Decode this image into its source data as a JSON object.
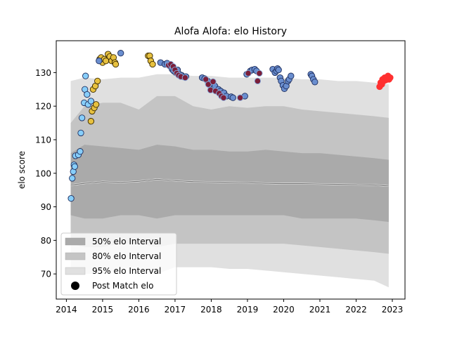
{
  "chart_data": {
    "type": "scatter",
    "title": "Alofa Alofa: elo History",
    "ylabel": "elo score",
    "xlabel": "",
    "xlim": [
      2013.72,
      2023.35
    ],
    "ylim": [
      62.5,
      139.5
    ],
    "x_ticks": [
      2014,
      2015,
      2016,
      2017,
      2018,
      2019,
      2020,
      2021,
      2022,
      2023
    ],
    "y_ticks": [
      70,
      80,
      90,
      100,
      110,
      120,
      130
    ],
    "grid": false,
    "legend": {
      "placement": "lower-left",
      "entries": [
        {
          "label": "50% elo Interval",
          "color": "#aaaaaa"
        },
        {
          "label": "80% elo Interval",
          "color": "#c4c4c4"
        },
        {
          "label": "95% elo Interval",
          "color": "#e0e0e0"
        },
        {
          "label": "Post Match elo",
          "color": "#000000"
        }
      ]
    },
    "bands": {
      "x": [
        2014.12,
        2014.5,
        2015.0,
        2015.5,
        2016.0,
        2016.5,
        2017.0,
        2017.5,
        2018.0,
        2018.5,
        2019.0,
        2019.5,
        2020.0,
        2020.5,
        2021.0,
        2021.5,
        2022.0,
        2022.5,
        2022.9
      ],
      "mean": [
        96.5,
        97,
        97.5,
        97.3,
        97.6,
        98.2,
        97.8,
        97.5,
        97.4,
        97.3,
        97.2,
        97,
        96.9,
        96.9,
        96.8,
        96.7,
        96.6,
        96.5,
        96.2
      ],
      "p50": [
        [
          87.5,
          106
        ],
        [
          86.5,
          108.5
        ],
        [
          86.5,
          108
        ],
        [
          87.5,
          107.5
        ],
        [
          87.5,
          107
        ],
        [
          86.5,
          108.5
        ],
        [
          87.5,
          108
        ],
        [
          87.5,
          107
        ],
        [
          87.5,
          107
        ],
        [
          87.5,
          106.5
        ],
        [
          87.5,
          106.5
        ],
        [
          87.5,
          107
        ],
        [
          87.5,
          106.5
        ],
        [
          86.5,
          106
        ],
        [
          86.5,
          106
        ],
        [
          86.5,
          105.5
        ],
        [
          86.5,
          105
        ],
        [
          86,
          104.5
        ],
        [
          85.5,
          104
        ]
      ],
      "p80": [
        [
          79,
          115
        ],
        [
          78,
          120
        ],
        [
          78,
          121
        ],
        [
          79,
          121
        ],
        [
          79,
          119
        ],
        [
          78,
          123
        ],
        [
          79,
          123
        ],
        [
          79,
          120
        ],
        [
          79,
          119
        ],
        [
          79,
          120
        ],
        [
          79,
          119.5
        ],
        [
          79,
          120
        ],
        [
          79,
          120
        ],
        [
          78.5,
          119
        ],
        [
          78,
          118.5
        ],
        [
          77.5,
          118
        ],
        [
          77,
          117.5
        ],
        [
          76.5,
          117
        ],
        [
          76,
          116.5
        ]
      ],
      "p95": [
        [
          71,
          127.5
        ],
        [
          70,
          128.5
        ],
        [
          70,
          128
        ],
        [
          71.5,
          128.5
        ],
        [
          72,
          128.5
        ],
        [
          70,
          129.5
        ],
        [
          72,
          129.5
        ],
        [
          72,
          129
        ],
        [
          72,
          129
        ],
        [
          71.5,
          128.5
        ],
        [
          71.5,
          128.5
        ],
        [
          71,
          128.5
        ],
        [
          70.5,
          128.5
        ],
        [
          70,
          128
        ],
        [
          69.5,
          128
        ],
        [
          69,
          127.5
        ],
        [
          68.5,
          127.5
        ],
        [
          68,
          127
        ],
        [
          66,
          126.5
        ]
      ]
    },
    "series": [
      {
        "color": "#87cefa",
        "edge": "#1f2f5f",
        "points": [
          [
            2014.13,
            92.5
          ],
          [
            2014.16,
            98.5
          ],
          [
            2014.19,
            100.5
          ],
          [
            2014.21,
            102.5
          ],
          [
            2014.23,
            102
          ],
          [
            2014.25,
            105.2
          ],
          [
            2014.33,
            105.5
          ],
          [
            2014.38,
            106.5
          ],
          [
            2014.4,
            112
          ],
          [
            2014.43,
            116.5
          ],
          [
            2014.49,
            121
          ],
          [
            2014.51,
            125
          ],
          [
            2014.53,
            129
          ],
          [
            2014.57,
            123.5
          ],
          [
            2014.6,
            120.5
          ],
          [
            2014.68,
            121.5
          ]
        ]
      },
      {
        "color": "#e7c13f",
        "edge": "#3a2a00",
        "points": [
          [
            2014.68,
            115.5
          ],
          [
            2014.71,
            118.5
          ],
          [
            2014.74,
            125
          ],
          [
            2014.77,
            119.5
          ],
          [
            2014.8,
            126
          ],
          [
            2014.82,
            120.5
          ],
          [
            2014.86,
            127.5
          ],
          [
            2014.92,
            134
          ],
          [
            2014.96,
            134.5
          ],
          [
            2015.0,
            133
          ],
          [
            2015.05,
            134
          ],
          [
            2015.09,
            133.5
          ],
          [
            2015.15,
            135.5
          ],
          [
            2015.2,
            134.8
          ],
          [
            2015.25,
            133.5
          ],
          [
            2015.3,
            134.5
          ],
          [
            2015.34,
            133
          ],
          [
            2015.36,
            132.5
          ],
          [
            2016.26,
            135
          ],
          [
            2016.3,
            135
          ],
          [
            2016.33,
            133.5
          ],
          [
            2016.38,
            132.5
          ]
        ]
      },
      {
        "color": "#6a8ecf",
        "edge": "#1f2f5f",
        "points": [
          [
            2014.9,
            133.5
          ],
          [
            2015.5,
            135.8
          ],
          [
            2016.6,
            133
          ],
          [
            2016.72,
            132.5
          ],
          [
            2016.78,
            132.8
          ],
          [
            2016.85,
            132
          ],
          [
            2016.92,
            131
          ],
          [
            2016.96,
            130.5
          ],
          [
            2017.02,
            130
          ],
          [
            2017.07,
            130.8
          ],
          [
            2017.12,
            129.5
          ],
          [
            2017.18,
            129.2
          ],
          [
            2017.22,
            128.8
          ],
          [
            2017.3,
            128.8
          ],
          [
            2017.75,
            128.5
          ],
          [
            2017.82,
            128.2
          ],
          [
            2017.9,
            127.5
          ],
          [
            2017.95,
            126.5
          ],
          [
            2018.0,
            125.5
          ],
          [
            2018.03,
            125
          ],
          [
            2018.1,
            126
          ],
          [
            2018.2,
            125
          ],
          [
            2018.26,
            124.5
          ],
          [
            2018.3,
            123.5
          ],
          [
            2018.35,
            124
          ],
          [
            2018.42,
            123
          ],
          [
            2018.55,
            122.8
          ],
          [
            2018.6,
            122.5
          ],
          [
            2018.93,
            123
          ],
          [
            2018.98,
            129.5
          ],
          [
            2019.08,
            130.5
          ],
          [
            2019.13,
            130.8
          ],
          [
            2019.2,
            131
          ],
          [
            2019.25,
            130.5
          ],
          [
            2019.7,
            131
          ],
          [
            2019.76,
            130
          ],
          [
            2019.8,
            130.5
          ],
          [
            2019.83,
            131.2
          ],
          [
            2019.86,
            130.8
          ],
          [
            2019.9,
            128.5
          ],
          [
            2019.93,
            127.5
          ],
          [
            2019.98,
            126.2
          ],
          [
            2020.02,
            125.2
          ],
          [
            2020.07,
            126
          ],
          [
            2020.12,
            127.5
          ],
          [
            2020.15,
            128
          ],
          [
            2020.2,
            129
          ],
          [
            2020.75,
            129.5
          ],
          [
            2020.78,
            129
          ],
          [
            2020.82,
            128
          ],
          [
            2020.86,
            127.2
          ]
        ]
      },
      {
        "color": "#7b1f3a",
        "edge": "#87aedf",
        "points": [
          [
            2016.82,
            132.2
          ],
          [
            2016.88,
            132.5
          ],
          [
            2016.95,
            131.8
          ],
          [
            2017.0,
            130.8
          ],
          [
            2017.05,
            129.8
          ],
          [
            2017.1,
            129.2
          ],
          [
            2017.16,
            128.8
          ],
          [
            2017.28,
            128.5
          ],
          [
            2017.85,
            128
          ],
          [
            2017.92,
            126.5
          ],
          [
            2017.98,
            124.8
          ],
          [
            2018.05,
            127.3
          ],
          [
            2018.12,
            124.5
          ],
          [
            2018.22,
            123.8
          ],
          [
            2018.28,
            123
          ],
          [
            2018.34,
            122.5
          ],
          [
            2018.8,
            122.5
          ],
          [
            2019.02,
            129.8
          ],
          [
            2019.28,
            127.5
          ],
          [
            2019.33,
            129.8
          ]
        ]
      },
      {
        "color": "#ff3030",
        "edge": "#ff3030",
        "points": [
          [
            2022.65,
            125.8
          ],
          [
            2022.68,
            127
          ],
          [
            2022.71,
            126.5
          ],
          [
            2022.73,
            128
          ],
          [
            2022.76,
            127.5
          ],
          [
            2022.79,
            128.5
          ],
          [
            2022.82,
            127.8
          ],
          [
            2022.85,
            128.2
          ],
          [
            2022.88,
            129
          ],
          [
            2022.91,
            128
          ],
          [
            2022.94,
            128.5
          ]
        ]
      }
    ]
  }
}
